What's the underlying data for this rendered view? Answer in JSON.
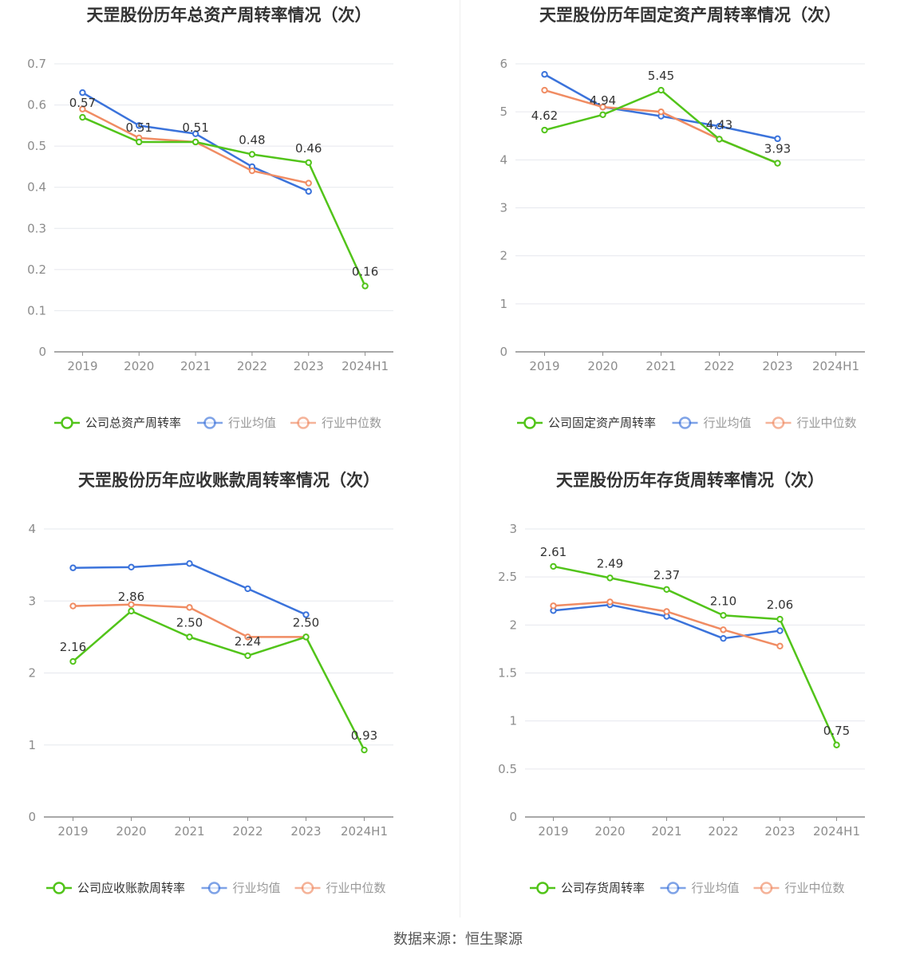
{
  "colors": {
    "company": "#52c41a",
    "avg": "#3b73db",
    "median": "#f08c63",
    "grid": "#e6e8ee",
    "axis": "#8c8c8c",
    "text": "#333333"
  },
  "legend_labels": {
    "avg": "行业均值",
    "median": "行业中位数"
  },
  "footer": "数据来源：恒生聚源",
  "chart_data": [
    {
      "type": "line",
      "title": "天罡股份历年总资产周转率情况（次）",
      "categories": [
        "2019",
        "2020",
        "2021",
        "2022",
        "2023",
        "2024H1"
      ],
      "ylim": [
        0,
        0.7
      ],
      "yticks": [
        "0",
        "0.1",
        "0.2",
        "0.3",
        "0.4",
        "0.5",
        "0.6",
        "0.7"
      ],
      "series": [
        {
          "name": "公司总资产周转率",
          "key": "company",
          "values": [
            0.57,
            0.51,
            0.51,
            0.48,
            0.46,
            0.16
          ],
          "labels": [
            "0.57",
            "0.51",
            "0.51",
            "0.48",
            "0.46",
            "0.16"
          ]
        },
        {
          "name": "行业均值",
          "key": "avg",
          "values": [
            0.63,
            0.55,
            0.53,
            0.45,
            0.39,
            null
          ]
        },
        {
          "name": "行业中位数",
          "key": "median",
          "values": [
            0.59,
            0.52,
            0.51,
            0.44,
            0.41,
            null
          ]
        }
      ],
      "grid": true,
      "legend": "bottom"
    },
    {
      "type": "line",
      "title": "天罡股份历年固定资产周转率情况（次）",
      "categories": [
        "2019",
        "2020",
        "2021",
        "2022",
        "2023",
        "2024H1"
      ],
      "ylim": [
        0,
        6
      ],
      "yticks": [
        "0",
        "1",
        "2",
        "3",
        "4",
        "5",
        "6"
      ],
      "series": [
        {
          "name": "公司固定资产周转率",
          "key": "company",
          "values": [
            4.62,
            4.94,
            5.45,
            4.43,
            3.93,
            null
          ],
          "labels": [
            "4.62",
            "4.94",
            "5.45",
            "4.43",
            "3.93",
            ""
          ]
        },
        {
          "name": "行业均值",
          "key": "avg",
          "values": [
            5.78,
            5.1,
            4.91,
            4.7,
            4.44,
            null
          ]
        },
        {
          "name": "行业中位数",
          "key": "median",
          "values": [
            5.45,
            5.1,
            5.0,
            4.43,
            3.93,
            null
          ]
        }
      ],
      "grid": true,
      "legend": "bottom"
    },
    {
      "type": "line",
      "title": "天罡股份历年应收账款周转率情况（次）",
      "categories": [
        "2019",
        "2020",
        "2021",
        "2022",
        "2023",
        "2024H1"
      ],
      "ylim": [
        0,
        4
      ],
      "yticks": [
        "0",
        "1",
        "2",
        "3",
        "4"
      ],
      "series": [
        {
          "name": "公司应收账款周转率",
          "key": "company",
          "values": [
            2.16,
            2.86,
            2.5,
            2.24,
            2.5,
            0.93
          ],
          "labels": [
            "2.16",
            "2.86",
            "2.50",
            "2.24",
            "2.50",
            "0.93"
          ]
        },
        {
          "name": "行业均值",
          "key": "avg",
          "values": [
            3.46,
            3.47,
            3.52,
            3.17,
            2.81,
            null
          ]
        },
        {
          "name": "行业中位数",
          "key": "median",
          "values": [
            2.93,
            2.95,
            2.91,
            2.5,
            2.5,
            null
          ]
        }
      ],
      "grid": true,
      "legend": "bottom"
    },
    {
      "type": "line",
      "title": "天罡股份历年存货周转率情况（次）",
      "categories": [
        "2019",
        "2020",
        "2021",
        "2022",
        "2023",
        "2024H1"
      ],
      "ylim": [
        0,
        3
      ],
      "yticks": [
        "0",
        "0.5",
        "1",
        "1.5",
        "2",
        "2.5",
        "3"
      ],
      "series": [
        {
          "name": "公司存货周转率",
          "key": "company",
          "values": [
            2.61,
            2.49,
            2.37,
            2.1,
            2.06,
            0.75
          ],
          "labels": [
            "2.61",
            "2.49",
            "2.37",
            "2.10",
            "2.06",
            "0.75"
          ]
        },
        {
          "name": "行业均值",
          "key": "avg",
          "values": [
            2.15,
            2.21,
            2.09,
            1.86,
            1.94,
            null
          ]
        },
        {
          "name": "行业中位数",
          "key": "median",
          "values": [
            2.2,
            2.24,
            2.14,
            1.95,
            1.78,
            null
          ]
        }
      ],
      "grid": true,
      "legend": "bottom"
    }
  ]
}
